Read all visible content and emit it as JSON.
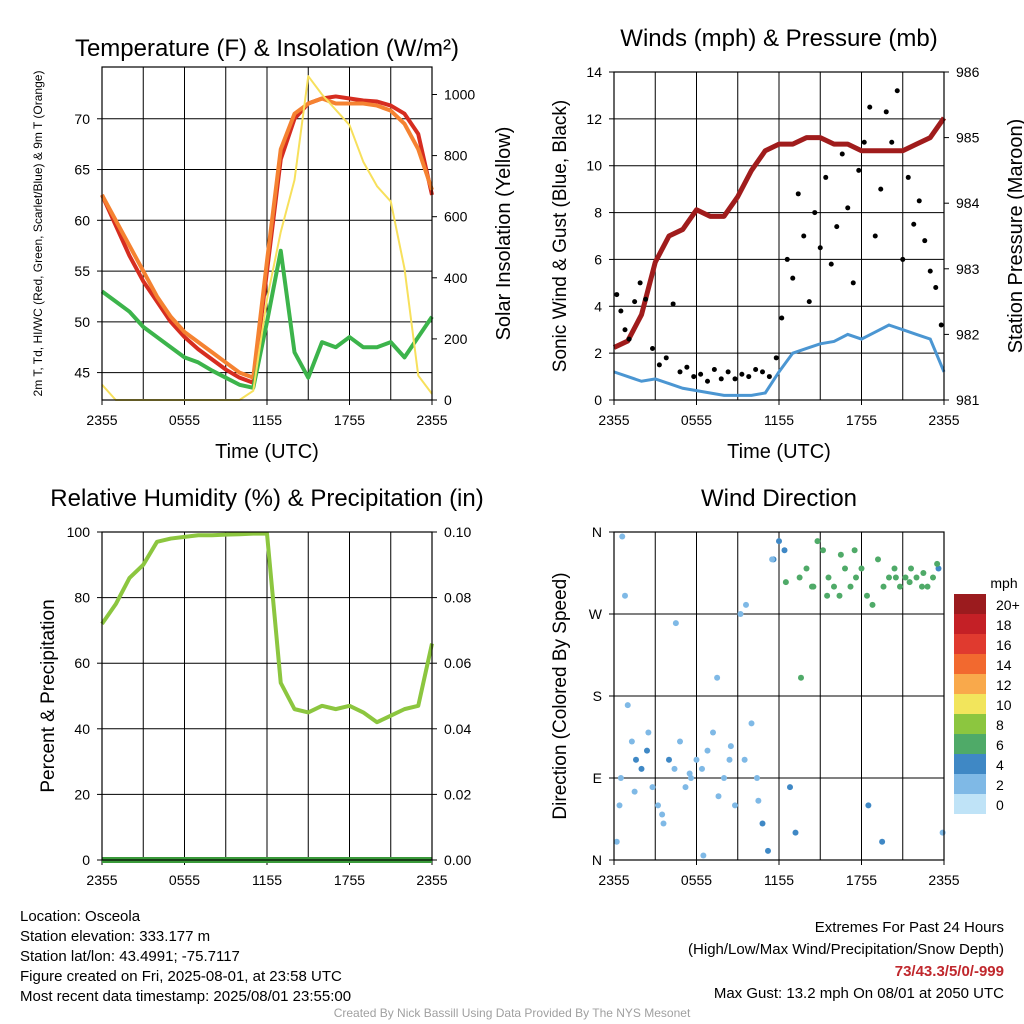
{
  "chart_data": [
    {
      "type": "line",
      "title": "Temperature (F) & Insolation (W/m²)",
      "xlabel": "Time (UTC)",
      "ylabel": "2m T, Td, HI/WC (Red, Green, Scarlet/Blue) & 9m T (Orange)",
      "y2label": "Solar Insolation (Yellow)",
      "x_ticks": [
        "2355",
        "0555",
        "1155",
        "1755",
        "2355"
      ],
      "y_ticks": [
        45,
        50,
        55,
        60,
        65,
        70
      ],
      "y2_ticks": [
        0,
        200,
        400,
        600,
        800,
        1000
      ],
      "ylim": [
        42.3,
        75.1
      ],
      "y2lim": [
        0,
        1090
      ],
      "grid": true,
      "x": [
        0,
        1,
        2,
        3,
        4,
        5,
        6,
        7,
        8,
        9,
        10,
        11,
        12,
        13,
        14,
        15,
        16,
        17,
        18,
        19,
        20,
        21,
        22,
        23,
        24
      ],
      "series": [
        {
          "color": "#d62d20",
          "values": [
            62.5,
            59.5,
            56.5,
            54,
            52,
            50,
            48.5,
            47.3,
            46.3,
            45.3,
            44.5,
            44,
            55,
            66,
            70,
            71.5,
            72,
            72.2,
            72,
            71.8,
            71.7,
            71.3,
            70.5,
            68.5,
            62.5
          ]
        },
        {
          "color": "#f58231",
          "values": [
            62.5,
            60,
            57.5,
            55,
            52.5,
            50.5,
            49,
            48,
            47,
            46,
            45,
            44.5,
            56,
            67,
            70.5,
            71.5,
            72,
            71.5,
            71.5,
            71.5,
            71.3,
            70.8,
            69.5,
            67,
            63
          ]
        },
        {
          "color": "#3cb44b",
          "values": [
            53,
            52,
            51,
            49.5,
            48.5,
            47.5,
            46.5,
            46,
            45.2,
            44.5,
            43.8,
            43.5,
            50,
            57,
            47,
            44.5,
            48,
            47.5,
            48.5,
            47.5,
            47.5,
            48,
            46.5,
            48.5,
            50.5
          ]
        },
        {
          "color": "#f7e05c",
          "values": [
            50,
            0,
            0,
            0,
            0,
            0,
            0,
            0,
            0,
            0,
            0,
            30,
            330,
            550,
            720,
            1060,
            1000,
            950,
            900,
            780,
            700,
            650,
            430,
            80,
            20
          ]
        }
      ]
    },
    {
      "type": "scatter",
      "title": "Winds (mph) & Pressure (mb)",
      "xlabel": "Time (UTC)",
      "ylabel": "Sonic Wind & Gust (Blue, Black)",
      "y2label": "Station Pressure (Maroon)",
      "x_ticks": [
        "2355",
        "0555",
        "1155",
        "1755",
        "2355"
      ],
      "y_ticks": [
        0,
        2,
        4,
        6,
        8,
        10,
        12,
        14
      ],
      "y2_ticks": [
        981,
        982,
        983,
        984,
        985,
        986
      ],
      "ylim": [
        0,
        14
      ],
      "y2lim": [
        981,
        986
      ],
      "grid": true,
      "series": [
        {
          "color": "#a01c1c",
          "x": [
            0,
            1,
            2,
            3,
            4,
            5,
            6,
            7,
            8,
            9,
            10,
            11,
            12,
            13,
            14,
            15,
            16,
            17,
            18,
            19,
            20,
            21,
            22,
            23,
            24
          ],
          "values": [
            981.8,
            981.9,
            982.3,
            983.1,
            983.5,
            983.6,
            983.9,
            983.8,
            983.8,
            984.1,
            984.5,
            984.8,
            984.9,
            984.9,
            985.0,
            985.0,
            984.9,
            984.9,
            984.8,
            984.8,
            984.8,
            984.8,
            984.9,
            985.0,
            985.3
          ]
        },
        {
          "color": "#4b96d2",
          "x": [
            0,
            1,
            2,
            3,
            4,
            5,
            6,
            7,
            8,
            9,
            10,
            11,
            12,
            13,
            14,
            15,
            16,
            17,
            18,
            19,
            20,
            21,
            22,
            23,
            24
          ],
          "values": [
            1.2,
            1.0,
            0.8,
            0.9,
            0.7,
            0.5,
            0.4,
            0.3,
            0.2,
            0.2,
            0.2,
            0.3,
            1.2,
            2.0,
            2.2,
            2.4,
            2.5,
            2.8,
            2.6,
            2.9,
            3.2,
            3.0,
            2.8,
            2.6,
            1.2
          ]
        },
        {
          "color": "#000000",
          "x": [
            0.2,
            0.5,
            0.8,
            1.1,
            1.5,
            1.9,
            2.3,
            2.8,
            3.3,
            3.8,
            4.3,
            4.8,
            5.3,
            5.8,
            6.3,
            6.8,
            7.3,
            7.8,
            8.3,
            8.8,
            9.3,
            9.8,
            10.3,
            10.8,
            11.3,
            11.8,
            12.2,
            12.6,
            13.0,
            13.4,
            13.8,
            14.2,
            14.6,
            15.0,
            15.4,
            15.8,
            16.2,
            16.6,
            17.0,
            17.4,
            17.8,
            18.2,
            18.6,
            19.0,
            19.4,
            19.8,
            20.2,
            20.6,
            21.0,
            21.4,
            21.8,
            22.2,
            22.6,
            23.0,
            23.4,
            23.8
          ],
          "values": [
            4.5,
            3.8,
            3.0,
            2.6,
            4.2,
            5.0,
            4.3,
            2.2,
            1.5,
            1.8,
            4.1,
            1.2,
            1.4,
            1.0,
            1.1,
            0.8,
            1.3,
            0.9,
            1.2,
            0.9,
            1.1,
            1.0,
            1.3,
            1.2,
            1.0,
            1.8,
            3.5,
            6.0,
            5.2,
            8.8,
            7.0,
            4.2,
            8.0,
            6.5,
            9.5,
            5.8,
            7.4,
            10.5,
            8.2,
            5.0,
            9.8,
            11.0,
            12.5,
            7.0,
            9.0,
            12.3,
            11.0,
            13.2,
            6.0,
            9.5,
            7.5,
            8.5,
            6.8,
            5.5,
            4.8,
            3.2
          ]
        }
      ]
    },
    {
      "type": "line",
      "title": "Relative Humidity (%) & Precipitation (in)",
      "ylabel": "Percent & Precipitation",
      "x_ticks": [
        "2355",
        "0555",
        "1155",
        "1755",
        "2355"
      ],
      "y_ticks": [
        0,
        20,
        40,
        60,
        80,
        100
      ],
      "y2_ticks": [
        "0.00",
        "0.02",
        "0.04",
        "0.06",
        "0.08",
        "0.10"
      ],
      "ylim": [
        0,
        100
      ],
      "y2lim": [
        0,
        0.1
      ],
      "grid": true,
      "x": [
        0,
        1,
        2,
        3,
        4,
        5,
        6,
        7,
        8,
        9,
        10,
        11,
        12,
        13,
        14,
        15,
        16,
        17,
        18,
        19,
        20,
        21,
        22,
        23,
        24
      ],
      "series": [
        {
          "color": "#8cc63f",
          "values": [
            72,
            78,
            86,
            90,
            97,
            98,
            98.5,
            99,
            99,
            99.2,
            99.3,
            99.5,
            99.5,
            54,
            46,
            45,
            47,
            46,
            47,
            45,
            42,
            44,
            46,
            47,
            66
          ]
        },
        {
          "color": "#3a9a3a",
          "values": [
            0,
            0,
            0,
            0,
            0,
            0,
            0,
            0,
            0,
            0,
            0,
            0,
            0,
            0,
            0,
            0,
            0,
            0,
            0,
            0,
            0,
            0,
            0,
            0,
            0
          ]
        }
      ]
    },
    {
      "type": "scatter",
      "title": "Wind Direction",
      "ylabel": "Direction (Colored By Speed)",
      "x_ticks": [
        "2355",
        "0555",
        "1155",
        "1755",
        "2355"
      ],
      "y_ticks": [
        "N",
        "E",
        "S",
        "W",
        "N"
      ],
      "ylim": [
        0,
        360
      ],
      "grid": true,
      "colorbar": {
        "title": "mph",
        "labels": [
          "20+",
          "18",
          "16",
          "14",
          "12",
          "10",
          "8",
          "6",
          "4",
          "2",
          "0"
        ],
        "colors": [
          "#9b1b1e",
          "#c42026",
          "#e03a2f",
          "#f2692f",
          "#f9a94b",
          "#f2e55c",
          "#8cc63f",
          "#4faa68",
          "#3f88c5",
          "#7fb9e6",
          "#bfe3f7"
        ]
      },
      "x": [
        0.2,
        0.4,
        0.6,
        0.8,
        1.0,
        1.3,
        1.6,
        2.0,
        2.4,
        2.8,
        3.2,
        3.6,
        4.0,
        4.4,
        4.8,
        5.2,
        5.6,
        6.0,
        6.4,
        6.8,
        7.2,
        7.6,
        8.0,
        8.4,
        8.8,
        9.2,
        9.6,
        10.0,
        10.4,
        10.8,
        11.2,
        11.6,
        12.0,
        12.4,
        12.8,
        13.2,
        13.6,
        14.0,
        14.4,
        14.8,
        15.2,
        15.6,
        16.0,
        16.4,
        16.8,
        17.2,
        17.6,
        18.0,
        18.4,
        18.8,
        19.2,
        19.6,
        20.0,
        20.4,
        20.8,
        21.2,
        21.6,
        22.0,
        22.4,
        22.8,
        23.2,
        23.6,
        23.9,
        0.5,
        1.5,
        2.5,
        3.5,
        4.5,
        5.5,
        6.5,
        7.5,
        8.5,
        9.5,
        10.5,
        11.5,
        12.5,
        13.5,
        14.5,
        15.5,
        16.5,
        17.5,
        18.5,
        19.5,
        20.5,
        21.5,
        22.5,
        23.5
      ],
      "values": [
        20,
        60,
        355,
        290,
        170,
        130,
        110,
        100,
        120,
        80,
        60,
        40,
        110,
        100,
        130,
        80,
        90,
        110,
        100,
        120,
        140,
        70,
        90,
        110,
        60,
        270,
        280,
        150,
        90,
        40,
        10,
        330,
        350,
        340,
        80,
        30,
        200,
        320,
        300,
        350,
        340,
        310,
        300,
        290,
        320,
        300,
        310,
        320,
        290,
        280,
        330,
        300,
        310,
        320,
        300,
        310,
        320,
        310,
        300,
        300,
        310,
        320,
        30,
        90,
        75,
        140,
        50,
        260,
        95,
        5,
        200,
        125,
        110,
        65,
        330,
        305,
        310,
        300,
        290,
        335,
        340,
        60,
        20,
        310,
        305,
        315,
        325
      ],
      "speeds": [
        1,
        1,
        1,
        1,
        1,
        1,
        2,
        2,
        2,
        1,
        1,
        1,
        2,
        1,
        1,
        1,
        1,
        1,
        1,
        1,
        1,
        1,
        1,
        1,
        1,
        1,
        1,
        1,
        1,
        2,
        2,
        2,
        2,
        2,
        2,
        2,
        3,
        3,
        3,
        3,
        3,
        3,
        3,
        3,
        3,
        3,
        3,
        3,
        3,
        3,
        3,
        3,
        3,
        3,
        3,
        3,
        3,
        3,
        3,
        3,
        3,
        2,
        1,
        1,
        1,
        1,
        1,
        1,
        1,
        1,
        1,
        1,
        1,
        1,
        1,
        3,
        3,
        3,
        3,
        3,
        3,
        2,
        2,
        3,
        3,
        3,
        3
      ]
    }
  ],
  "footer": {
    "location": "Location: Osceola",
    "elevation": "Station elevation: 333.177 m",
    "latlon": "Station lat/lon: 43.4991; -75.7117",
    "created": "Figure created on Fri, 2025-08-01, at 23:58 UTC",
    "recent": "Most recent data timestamp: 2025/08/01 23:55:00",
    "extremes_title": "Extremes For Past 24 Hours",
    "extremes_legend": "(High/Low/Max Wind/Precipitation/Snow Depth)",
    "extremes_values": "73/43.3/5/0/-999",
    "max_gust": "Max Gust: 13.2 mph On 08/01 at 2050 UTC",
    "credit": "Created By Nick Bassill Using Data Provided By The NYS Mesonet"
  }
}
